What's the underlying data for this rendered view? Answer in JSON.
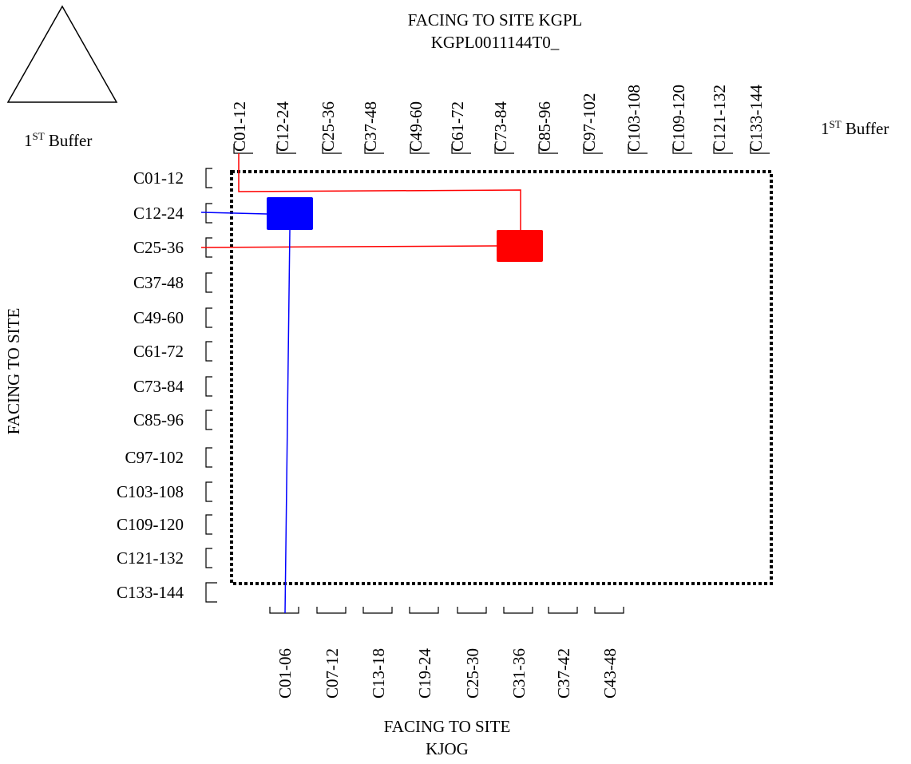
{
  "top_title": {
    "line1": "FACING TO SITE KGPL",
    "line2": "KGPL0011144T0_"
  },
  "bottom_title": {
    "line1": "FACING TO SITE",
    "line2": "KJOG"
  },
  "left_title": "FACING TO SITE",
  "buffer_left": {
    "base": "1",
    "sup": "ST",
    "rest": " Buffer"
  },
  "buffer_right": {
    "base": "1",
    "sup": "ST",
    "rest": " Buffer"
  },
  "top_ports": [
    "C01-12",
    "C12-24",
    "C25-36",
    "C37-48",
    "C49-60",
    "C61-72",
    "C73-84",
    "C85-96",
    "C97-102",
    "C103-108",
    "C109-120",
    "C121-132",
    "C133-144"
  ],
  "left_ports": [
    "C01-12",
    "C12-24",
    "C25-36",
    "C37-48",
    "C49-60",
    "C61-72",
    "C73-84",
    "C85-96",
    "C97-102",
    "C103-108",
    "C109-120",
    "C121-132",
    "C133-144"
  ],
  "bottom_ports": [
    "C01-06",
    "C07-12",
    "C13-18",
    "C19-24",
    "C25-30",
    "C31-36",
    "C37-42",
    "C43-48"
  ],
  "connections": [
    {
      "color": "#ff0000",
      "from": "top:C01-12",
      "to": "left:C25-36"
    },
    {
      "color": "#0000ff",
      "from": "left:C12-24",
      "to": "bottom:C01-06"
    }
  ],
  "colors": {
    "red_block": "#ff0000",
    "blue_block": "#0000ff",
    "line": "#000000"
  }
}
